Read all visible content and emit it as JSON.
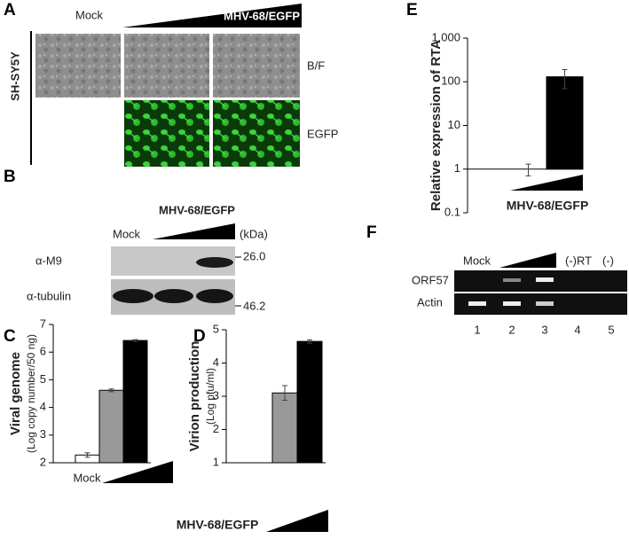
{
  "panel_labels": [
    "A",
    "B",
    "C",
    "D",
    "E",
    "F"
  ],
  "panel_a": {
    "columns": [
      "Mock",
      "MHV-68/EGFP"
    ],
    "cell_line": "SH-SY5Y",
    "rows": [
      "B/F",
      "EGFP"
    ]
  },
  "panel_b": {
    "header": "MHV-68/EGFP",
    "mock": "Mock",
    "unit": "(kDa)",
    "rows": [
      "α-M9",
      "α-tubulin"
    ],
    "markers": [
      "26.0",
      "46.2"
    ]
  },
  "panel_f": {
    "mock": "Mock",
    "rows": [
      "ORF57",
      "Actin"
    ],
    "lane_labels": [
      "(-)RT",
      "(-)"
    ],
    "lanes": [
      "1",
      "2",
      "3",
      "4",
      "5"
    ]
  },
  "chart_data": [
    {
      "type": "bar",
      "ylabel": "Viral genome",
      "ylabel_sub": "(Log copy number/50 ng)",
      "categories": [
        "Mock",
        null,
        null
      ],
      "values": [
        2.28,
        4.62,
        6.42
      ],
      "errors": [
        0.08,
        0.05,
        0.03
      ],
      "colors": [
        "#ffffff",
        "#999999",
        "#000000"
      ],
      "ylim": [
        2,
        7
      ],
      "yticks": [
        2,
        3,
        4,
        5,
        6,
        7
      ],
      "log": false
    },
    {
      "type": "bar",
      "ylabel": "Virion production",
      "ylabel_sub": "(Log pfu/ml)",
      "xlabel": "MHV-68/EGFP",
      "categories": [
        null,
        null
      ],
      "values": [
        3.1,
        4.65
      ],
      "errors": [
        0.22,
        0.05
      ],
      "colors": [
        "#999999",
        "#000000"
      ],
      "ylim": [
        1,
        5
      ],
      "yticks": [
        1,
        2,
        3,
        4,
        5
      ],
      "log": false
    },
    {
      "type": "bar",
      "ylabel": "Relative expression of RTA",
      "xlabel": "MHV-68/EGFP",
      "categories": [
        null,
        null
      ],
      "values": [
        1,
        130
      ],
      "errors": [
        0.3,
        60
      ],
      "colors": [
        "#ffffff",
        "#000000"
      ],
      "ylim": [
        0.1,
        1000
      ],
      "yticks": [
        0.1,
        1,
        10,
        100,
        {
          "value": 1000,
          "label": "1,000"
        }
      ],
      "log": true
    }
  ]
}
